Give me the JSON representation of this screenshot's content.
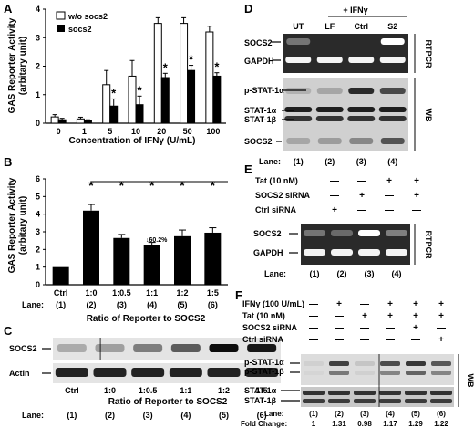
{
  "panels": {
    "A": {
      "letter": "A",
      "ylabel_lines": [
        "GAS Reporter Activity",
        "(arbitary unit)"
      ],
      "xlabel": "Concentration of IFNγ (U/mL)",
      "legend": [
        "w/o socs2",
        "socs2"
      ],
      "sig_marks": [
        "*",
        "*",
        "*",
        "*",
        "*"
      ]
    },
    "B": {
      "letter": "B",
      "ylabel_lines": [
        "GAS Reporter Activity",
        "(arbitary unit)"
      ],
      "xlabel": "Ratio of Reporter to SOCS2",
      "lane_label": "Lane:",
      "lanes": [
        "(1)",
        "(2)",
        "(3)",
        "(4)",
        "(5)",
        "(6)"
      ],
      "annotation": "↓60.2%",
      "sig_marks": [
        "*",
        "*",
        "*",
        "*",
        "*"
      ]
    },
    "C": {
      "letter": "C",
      "rows": [
        "SOCS2",
        "Actin"
      ],
      "categories": [
        "Ctrl",
        "1:0",
        "1:0.5",
        "1:1",
        "1:2",
        "1:5"
      ],
      "xlabel": "Ratio of Reporter to SOCS2",
      "lane_label": "Lane:",
      "lanes": [
        "(1)",
        "(2)",
        "(3)",
        "(4)",
        "(5)",
        "(6)"
      ]
    },
    "D": {
      "letter": "D",
      "treatment": "+ IFNγ",
      "cols": [
        "UT",
        "LF",
        "Ctrl",
        "S2"
      ],
      "rows_rt": [
        "SOCS2",
        "GAPDH"
      ],
      "rows_wb": [
        "p-STAT-1α",
        "STAT-1α",
        "STAT-1β",
        "SOCS2"
      ],
      "side_rt": "RTPCR",
      "side_wb": "WB",
      "lane_label": "Lane:",
      "lanes": [
        "(1)",
        "(2)",
        "(3)",
        "(4)"
      ]
    },
    "E": {
      "letter": "E",
      "conditions": [
        {
          "label": "Tat (10 nM)",
          "signs": [
            "—",
            "—",
            "+",
            "+"
          ]
        },
        {
          "label": "SOCS2 siRNA",
          "signs": [
            "—",
            "+",
            "—",
            "+"
          ]
        },
        {
          "label": "Ctrl siRNA",
          "signs": [
            "+",
            "—",
            "—",
            "—"
          ]
        }
      ],
      "rows": [
        "SOCS2",
        "GAPDH"
      ],
      "side": "RTPCR",
      "lane_label": "Lane:",
      "lanes": [
        "(1)",
        "(2)",
        "(3)",
        "(4)"
      ]
    },
    "F": {
      "letter": "F",
      "conditions": [
        {
          "label": "IFNγ (100 U/mL)",
          "signs": [
            "—",
            "+",
            "—",
            "+",
            "+",
            "+"
          ]
        },
        {
          "label": "Tat (10 nM)",
          "signs": [
            "—",
            "—",
            "+",
            "+",
            "+",
            "+"
          ]
        },
        {
          "label": "SOCS2 siRNA",
          "signs": [
            "—",
            "—",
            "—",
            "—",
            "+",
            "—"
          ]
        },
        {
          "label": "Ctrl siRNA",
          "signs": [
            "—",
            "—",
            "—",
            "—",
            "—",
            "+"
          ]
        }
      ],
      "rows": [
        "p-STAT-1α",
        "p-STAT-1β",
        "STAT-1α",
        "STAT-1β"
      ],
      "side": "WB",
      "lane_label": "Lane:",
      "lanes": [
        "(1)",
        "(2)",
        "(3)",
        "(4)",
        "(5)",
        "(6)"
      ],
      "fold_label": "Fold Change:",
      "fold_values": [
        "1",
        "1.31",
        "0.98",
        "1.17",
        "1.29",
        "1.22"
      ]
    }
  },
  "chart_data": [
    {
      "type": "bar",
      "panel": "A",
      "categories": [
        "0",
        "1",
        "5",
        "10",
        "20",
        "50",
        "100"
      ],
      "series": [
        {
          "name": "w/o socs2",
          "values": [
            0.22,
            0.15,
            1.35,
            1.65,
            3.5,
            3.5,
            3.2
          ],
          "errors": [
            0.08,
            0.06,
            0.5,
            0.55,
            0.2,
            0.2,
            0.2
          ]
        },
        {
          "name": "socs2",
          "values": [
            0.12,
            0.08,
            0.6,
            0.65,
            1.6,
            1.85,
            1.65
          ],
          "errors": [
            0.05,
            0.04,
            0.25,
            0.3,
            0.15,
            0.18,
            0.12
          ]
        }
      ],
      "xlabel": "Concentration of IFNγ (U/mL)",
      "ylabel": "GAS Reporter Activity (arbitary unit)",
      "ylim": [
        0,
        4
      ],
      "yticks": [
        "0",
        "1",
        "2",
        "3",
        "4"
      ],
      "legend": "top-left"
    },
    {
      "type": "bar",
      "panel": "B",
      "categories": [
        "Ctrl",
        "1:0",
        "1:0.5",
        "1:1",
        "1:2",
        "1:5"
      ],
      "values": [
        1.0,
        4.2,
        2.65,
        2.25,
        2.75,
        2.95
      ],
      "errors": [
        0.0,
        0.35,
        0.2,
        0.15,
        0.35,
        0.28
      ],
      "xlabel": "Ratio of Reporter to SOCS2",
      "ylabel": "GAS Reporter Activity (arbitary unit)",
      "ylim": [
        0,
        6
      ],
      "yticks": [
        "0",
        "1",
        "2",
        "3",
        "4",
        "5",
        "6"
      ]
    }
  ]
}
